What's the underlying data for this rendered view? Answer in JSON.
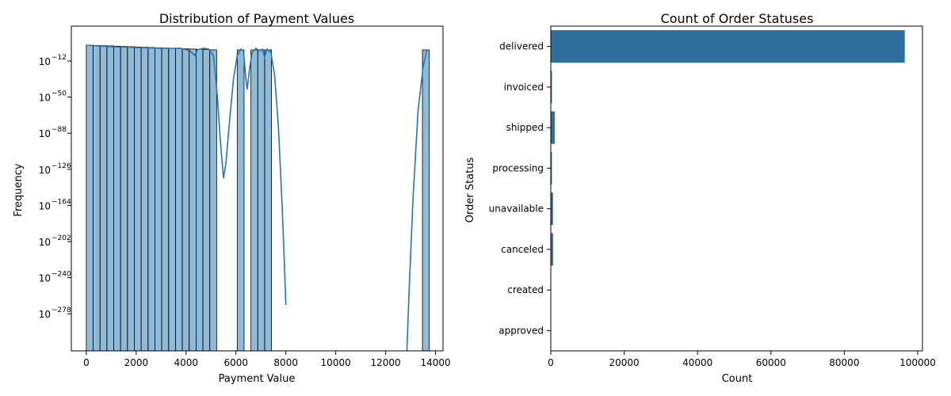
{
  "chart_data": [
    {
      "type": "bar",
      "variant": "histogram",
      "title": "Distribution of Payment Values",
      "xlabel": "Payment Value",
      "ylabel": "Frequency",
      "y_scale": "log",
      "x_ticks": [
        "0",
        "2000",
        "4000",
        "6000",
        "8000",
        "10000",
        "12000",
        "14000"
      ],
      "y_tick_exponents": [
        "−12",
        "−50",
        "−88",
        "−126",
        "−164",
        "−202",
        "−240",
        "−278"
      ],
      "y_tick_base": "10",
      "xlim": [
        -600,
        14300
      ],
      "bin_width": 275,
      "bins_start": [
        0,
        275,
        550,
        825,
        1100,
        1375,
        1650,
        1925,
        2200,
        2475,
        2750,
        3025,
        3300,
        3575,
        3850,
        4125,
        4400,
        4675,
        4950,
        6050,
        6600,
        6875,
        7150,
        13475
      ],
      "color": "#1f77b4",
      "grid": false,
      "legend": "none",
      "kde": true
    },
    {
      "type": "bar",
      "orientation": "horizontal",
      "title": "Count of Order Statuses",
      "xlabel": "Count",
      "ylabel": "Order Status",
      "categories": [
        "delivered",
        "invoiced",
        "shipped",
        "processing",
        "unavailable",
        "canceled",
        "created",
        "approved"
      ],
      "values": [
        96478,
        314,
        1107,
        301,
        609,
        625,
        5,
        2
      ],
      "x_ticks": [
        "0",
        "20000",
        "40000",
        "60000",
        "80000",
        "100000"
      ],
      "xlim": [
        0,
        101300
      ],
      "color": "#2e6f9e",
      "grid": false,
      "legend": "none"
    }
  ]
}
